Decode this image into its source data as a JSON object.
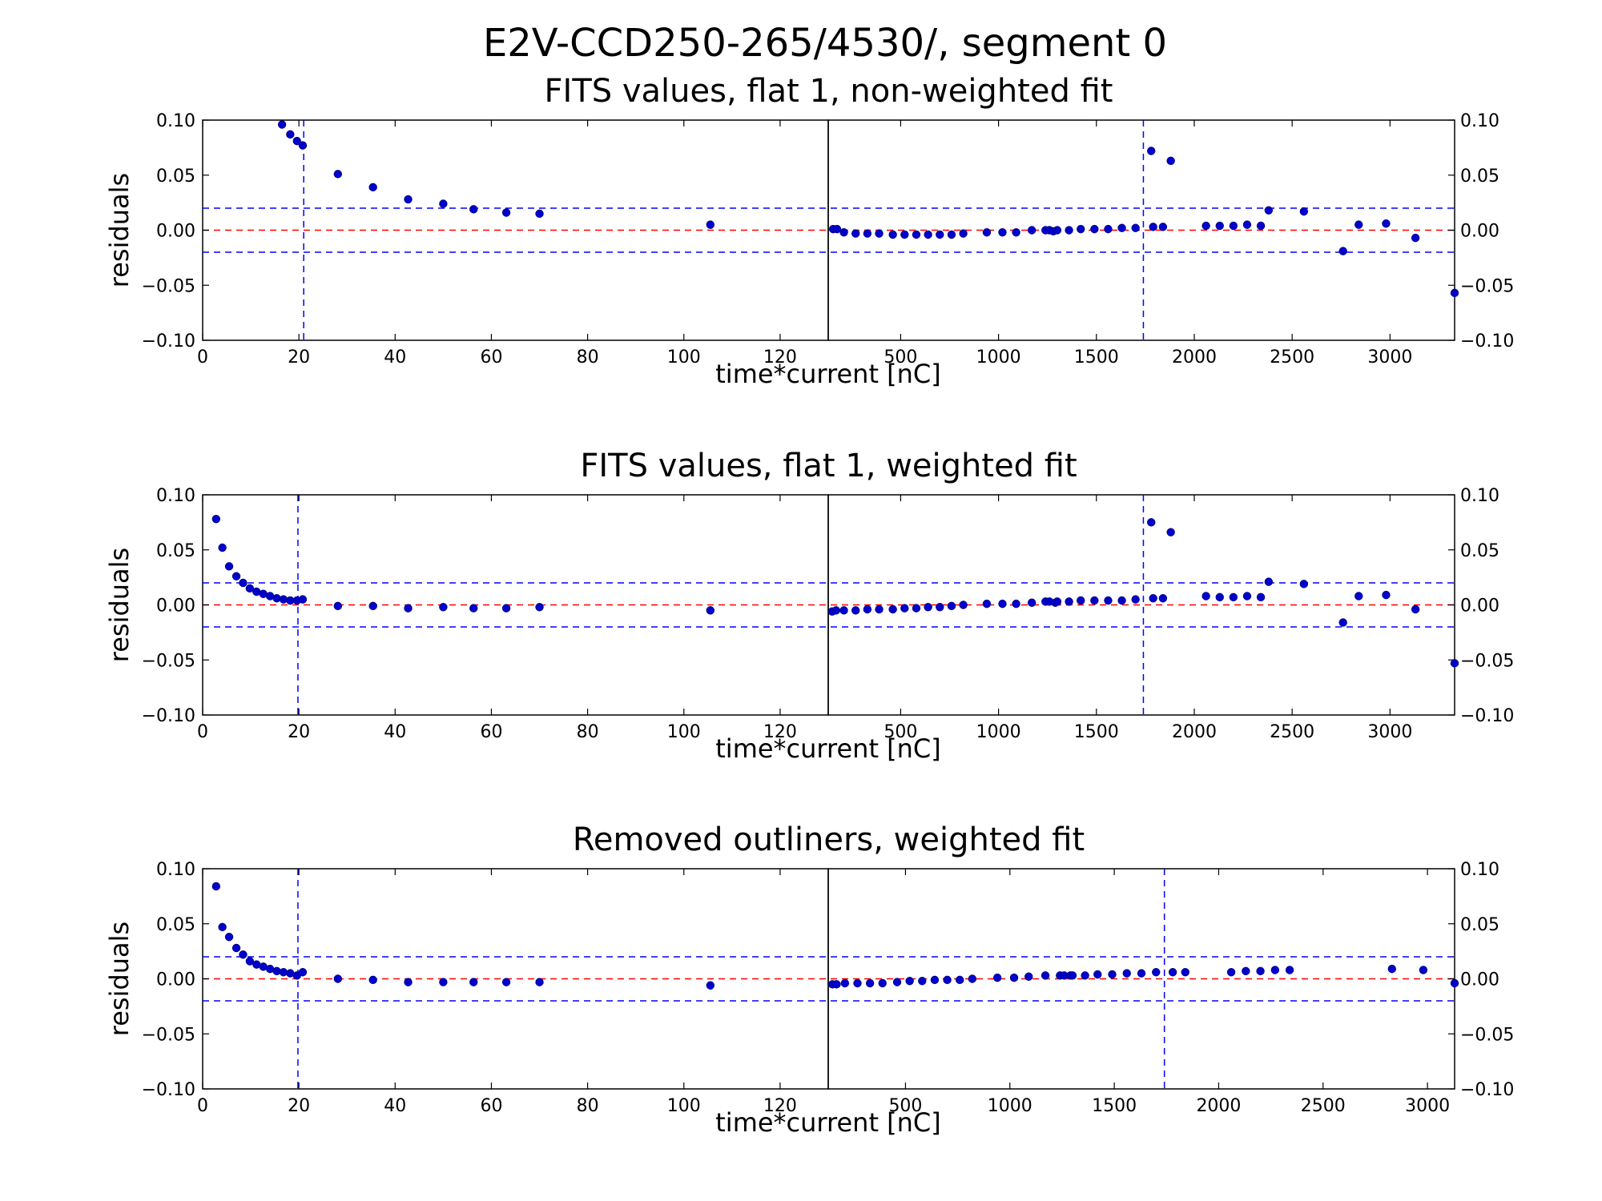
{
  "figure": {
    "suptitle": "E2V-CCD250-265/4530/, segment 0",
    "ylabel": "residuals",
    "xlabel": "time*current [nC]"
  },
  "colors": {
    "points": "#0000cc",
    "zero_line": "#ff0000",
    "band_lines": "#0000ff",
    "vertical_line": "#0000ff",
    "axes": "#000000"
  },
  "chart_data": [
    {
      "type": "scatter",
      "title": "FITS values, flat 1, non-weighted fit",
      "xlabel": "time*current [nC]",
      "ylabel": "residuals",
      "ylim": [
        -0.1,
        0.1
      ],
      "yticks": [
        "0.10",
        "0.05",
        "0.00",
        "−0.05",
        "−0.10"
      ],
      "reference_lines": {
        "zero": 0.0,
        "band": [
          0.02,
          -0.02
        ],
        "vertical": [
          21,
          1740
        ]
      },
      "left": {
        "xlim": [
          0,
          130
        ],
        "xticks": [
          "0",
          "20",
          "40",
          "60",
          "80",
          "100",
          "120"
        ],
        "points": [
          [
            16.5,
            0.096
          ],
          [
            18.2,
            0.087
          ],
          [
            19.6,
            0.081
          ],
          [
            20.8,
            0.077
          ],
          [
            28.1,
            0.051
          ],
          [
            35.4,
            0.039
          ],
          [
            42.7,
            0.028
          ],
          [
            50,
            0.024
          ],
          [
            56.3,
            0.019
          ],
          [
            63.1,
            0.016
          ],
          [
            70,
            0.015
          ],
          [
            105.5,
            0.005
          ]
        ]
      },
      "right": {
        "xlim": [
          130,
          3330
        ],
        "xticks": [
          "500",
          "1000",
          "1500",
          "2000",
          "2500",
          "3000"
        ],
        "points": [
          [
            155,
            0.001
          ],
          [
            175,
            0.001
          ],
          [
            210,
            -0.002
          ],
          [
            270,
            -0.003
          ],
          [
            330,
            -0.003
          ],
          [
            390,
            -0.003
          ],
          [
            460,
            -0.004
          ],
          [
            520,
            -0.004
          ],
          [
            580,
            -0.004
          ],
          [
            640,
            -0.004
          ],
          [
            700,
            -0.004
          ],
          [
            760,
            -0.004
          ],
          [
            820,
            -0.003
          ],
          [
            940,
            -0.002
          ],
          [
            1020,
            -0.002
          ],
          [
            1090,
            -0.002
          ],
          [
            1170,
            0.0
          ],
          [
            1240,
            0.0
          ],
          [
            1260,
            0.0
          ],
          [
            1280,
            -0.001
          ],
          [
            1300,
            0.0
          ],
          [
            1360,
            0.0
          ],
          [
            1420,
            0.001
          ],
          [
            1490,
            0.001
          ],
          [
            1560,
            0.001
          ],
          [
            1630,
            0.002
          ],
          [
            1700,
            0.002
          ],
          [
            1790,
            0.003
          ],
          [
            1780,
            0.072
          ],
          [
            1880,
            0.063
          ],
          [
            1840,
            0.003
          ],
          [
            2060,
            0.004
          ],
          [
            2130,
            0.004
          ],
          [
            2200,
            0.004
          ],
          [
            2270,
            0.005
          ],
          [
            2340,
            0.004
          ],
          [
            2380,
            0.018
          ],
          [
            2560,
            0.017
          ],
          [
            2760,
            -0.019
          ],
          [
            2840,
            0.005
          ],
          [
            2980,
            0.006
          ],
          [
            3130,
            -0.007
          ],
          [
            3330,
            -0.057
          ]
        ]
      }
    },
    {
      "type": "scatter",
      "title": "FITS values, flat 1, weighted fit",
      "xlabel": "time*current [nC]",
      "ylabel": "residuals",
      "ylim": [
        -0.1,
        0.1
      ],
      "yticks": [
        "0.10",
        "0.05",
        "0.00",
        "−0.05",
        "−0.10"
      ],
      "reference_lines": {
        "zero": 0.0,
        "band": [
          0.02,
          -0.02
        ],
        "vertical": [
          19.8,
          1740
        ]
      },
      "left": {
        "xlim": [
          0,
          130
        ],
        "xticks": [
          "0",
          "20",
          "40",
          "60",
          "80",
          "100",
          "120"
        ],
        "points": [
          [
            2.8,
            0.078
          ],
          [
            4.1,
            0.052
          ],
          [
            5.5,
            0.035
          ],
          [
            7,
            0.026
          ],
          [
            8.4,
            0.02
          ],
          [
            9.8,
            0.015
          ],
          [
            11.2,
            0.012
          ],
          [
            12.6,
            0.01
          ],
          [
            14,
            0.008
          ],
          [
            15.4,
            0.006
          ],
          [
            16.8,
            0.005
          ],
          [
            18.2,
            0.004
          ],
          [
            19.6,
            0.004
          ],
          [
            20.8,
            0.005
          ],
          [
            28.1,
            -0.001
          ],
          [
            35.4,
            -0.001
          ],
          [
            42.7,
            -0.003
          ],
          [
            50,
            -0.002
          ],
          [
            56.3,
            -0.003
          ],
          [
            63.1,
            -0.003
          ],
          [
            70,
            -0.002
          ],
          [
            105.5,
            -0.005
          ]
        ]
      },
      "right": {
        "xlim": [
          130,
          3330
        ],
        "xticks": [
          "500",
          "1000",
          "1500",
          "2000",
          "2500",
          "3000"
        ],
        "points": [
          [
            150,
            -0.006
          ],
          [
            170,
            -0.005
          ],
          [
            210,
            -0.005
          ],
          [
            270,
            -0.005
          ],
          [
            330,
            -0.004
          ],
          [
            390,
            -0.004
          ],
          [
            460,
            -0.004
          ],
          [
            520,
            -0.003
          ],
          [
            580,
            -0.003
          ],
          [
            640,
            -0.002
          ],
          [
            700,
            -0.002
          ],
          [
            760,
            -0.001
          ],
          [
            820,
            0.0
          ],
          [
            940,
            0.001
          ],
          [
            1020,
            0.001
          ],
          [
            1090,
            0.001
          ],
          [
            1170,
            0.002
          ],
          [
            1240,
            0.003
          ],
          [
            1260,
            0.003
          ],
          [
            1290,
            0.002
          ],
          [
            1300,
            0.003
          ],
          [
            1360,
            0.003
          ],
          [
            1420,
            0.004
          ],
          [
            1490,
            0.004
          ],
          [
            1560,
            0.004
          ],
          [
            1630,
            0.004
          ],
          [
            1700,
            0.005
          ],
          [
            1790,
            0.006
          ],
          [
            1780,
            0.075
          ],
          [
            1880,
            0.066
          ],
          [
            1840,
            0.006
          ],
          [
            2060,
            0.008
          ],
          [
            2130,
            0.007
          ],
          [
            2200,
            0.007
          ],
          [
            2270,
            0.008
          ],
          [
            2340,
            0.007
          ],
          [
            2380,
            0.021
          ],
          [
            2560,
            0.019
          ],
          [
            2760,
            -0.016
          ],
          [
            2840,
            0.008
          ],
          [
            2980,
            0.009
          ],
          [
            3130,
            -0.004
          ],
          [
            3330,
            -0.053
          ]
        ]
      }
    },
    {
      "type": "scatter",
      "title": "Removed outliners, weighted fit",
      "xlabel": "time*current [nC]",
      "ylabel": "residuals",
      "ylim": [
        -0.1,
        0.1
      ],
      "yticks": [
        "0.10",
        "0.05",
        "0.00",
        "−0.05",
        "−0.10"
      ],
      "reference_lines": {
        "zero": 0.0,
        "band": [
          0.02,
          -0.02
        ],
        "vertical": [
          19.8,
          1740
        ]
      },
      "left": {
        "xlim": [
          0,
          130
        ],
        "xticks": [
          "0",
          "20",
          "40",
          "60",
          "80",
          "100",
          "120"
        ],
        "points": [
          [
            2.8,
            0.084
          ],
          [
            4.1,
            0.047
          ],
          [
            5.5,
            0.038
          ],
          [
            7,
            0.028
          ],
          [
            8.4,
            0.022
          ],
          [
            9.8,
            0.016
          ],
          [
            11.2,
            0.013
          ],
          [
            12.6,
            0.011
          ],
          [
            14,
            0.009
          ],
          [
            15.4,
            0.007
          ],
          [
            16.8,
            0.006
          ],
          [
            18.2,
            0.005
          ],
          [
            19.6,
            0.003
          ],
          [
            20.8,
            0.006
          ],
          [
            28.1,
            0.0
          ],
          [
            35.4,
            -0.001
          ],
          [
            42.7,
            -0.003
          ],
          [
            50,
            -0.003
          ],
          [
            56.3,
            -0.003
          ],
          [
            63.1,
            -0.003
          ],
          [
            70,
            -0.003
          ],
          [
            105.5,
            -0.006
          ]
        ]
      },
      "right": {
        "xlim": [
          130,
          3130
        ],
        "xticks": [
          "500",
          "1000",
          "1500",
          "2000",
          "2500",
          "3000"
        ],
        "points": [
          [
            150,
            -0.005
          ],
          [
            170,
            -0.005
          ],
          [
            210,
            -0.004
          ],
          [
            270,
            -0.004
          ],
          [
            330,
            -0.004
          ],
          [
            390,
            -0.004
          ],
          [
            460,
            -0.003
          ],
          [
            520,
            -0.002
          ],
          [
            580,
            -0.002
          ],
          [
            640,
            -0.001
          ],
          [
            700,
            -0.001
          ],
          [
            760,
            -0.001
          ],
          [
            820,
            0.0
          ],
          [
            940,
            0.001
          ],
          [
            1020,
            0.001
          ],
          [
            1090,
            0.002
          ],
          [
            1170,
            0.003
          ],
          [
            1240,
            0.003
          ],
          [
            1260,
            0.003
          ],
          [
            1290,
            0.003
          ],
          [
            1300,
            0.003
          ],
          [
            1360,
            0.003
          ],
          [
            1420,
            0.004
          ],
          [
            1490,
            0.004
          ],
          [
            1560,
            0.005
          ],
          [
            1630,
            0.005
          ],
          [
            1700,
            0.006
          ],
          [
            1780,
            0.006
          ],
          [
            1840,
            0.006
          ],
          [
            2060,
            0.006
          ],
          [
            2130,
            0.007
          ],
          [
            2200,
            0.007
          ],
          [
            2270,
            0.008
          ],
          [
            2340,
            0.008
          ],
          [
            2830,
            0.009
          ],
          [
            2980,
            0.008
          ],
          [
            3130,
            -0.004
          ]
        ]
      }
    }
  ]
}
